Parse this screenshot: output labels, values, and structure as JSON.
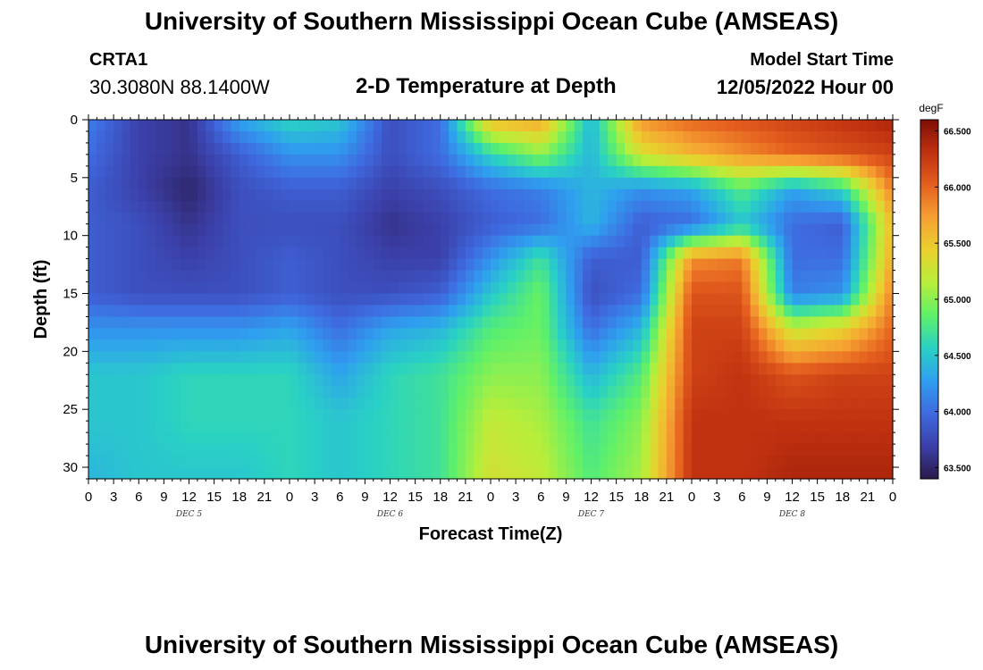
{
  "header": {
    "title": "University of Southern Mississippi Ocean Cube (AMSEAS)",
    "station_id": "CRTA1",
    "station_coords": "30.3080N  88.1400W",
    "subtitle": "2-D Temperature at Depth",
    "model_start_label": "Model Start Time",
    "model_start_value": "12/05/2022 Hour 00"
  },
  "footer": {
    "title": "University of Southern Mississippi Ocean Cube (AMSEAS)"
  },
  "colors": {
    "colormap": [
      "#2a1a4a",
      "#3b3fa8",
      "#3f6ae0",
      "#2f9fef",
      "#29d1c4",
      "#5ef06a",
      "#b8ee3a",
      "#e9d12e",
      "#f6a132",
      "#e5601f",
      "#c03110",
      "#7f0e06"
    ]
  },
  "chart_data": {
    "type": "heatmap",
    "title": "2-D Temperature at Depth",
    "xlabel": "Forecast Time(Z)",
    "ylabel": "Depth (ft)",
    "x_hours": [
      0,
      3,
      6,
      9,
      12,
      15,
      18,
      21,
      24,
      27,
      30,
      33,
      36,
      39,
      42,
      45,
      48,
      51,
      54,
      57,
      60,
      63,
      66,
      69,
      72,
      75,
      78,
      81,
      84,
      87,
      90,
      93,
      96
    ],
    "x_tick_labels": [
      "0",
      "3",
      "6",
      "9",
      "12",
      "15",
      "18",
      "21",
      "0",
      "3",
      "6",
      "9",
      "12",
      "15",
      "18",
      "21",
      "0",
      "3",
      "6",
      "9",
      "12",
      "15",
      "18",
      "21",
      "0",
      "3",
      "6",
      "9",
      "12",
      "15",
      "18",
      "21",
      "0"
    ],
    "day_labels": [
      {
        "label": "DEC 5",
        "hour": 12
      },
      {
        "label": "DEC 6",
        "hour": 36
      },
      {
        "label": "DEC 7",
        "hour": 60
      },
      {
        "label": "DEC 8",
        "hour": 84
      }
    ],
    "xlim": [
      0,
      96
    ],
    "y_ticks": [
      0,
      5,
      10,
      15,
      20,
      25,
      30
    ],
    "ylim": [
      0,
      31
    ],
    "colorbar": {
      "unit": "degF",
      "range": [
        63.4,
        66.6
      ],
      "ticks": [
        63.5,
        64.0,
        64.5,
        65.0,
        65.5,
        66.0,
        66.5
      ],
      "tick_labels": [
        "63.500",
        "64.000",
        "64.500",
        "65.000",
        "65.500",
        "66.000",
        "66.500"
      ]
    },
    "depth_levels": [
      0,
      3,
      6,
      9,
      12,
      15,
      18,
      22,
      26,
      31
    ],
    "temperature_hours": [
      0,
      6,
      12,
      18,
      24,
      30,
      36,
      42,
      48,
      54,
      60,
      66,
      72,
      78,
      84,
      90,
      96
    ],
    "temperature_degF": [
      [
        64.1,
        63.7,
        63.6,
        64.3,
        64.6,
        64.5,
        63.8,
        64.0,
        65.6,
        65.7,
        64.4,
        65.8,
        66.0,
        66.1,
        66.2,
        66.3,
        66.4
      ],
      [
        64.0,
        63.7,
        63.6,
        63.9,
        64.2,
        64.2,
        63.8,
        64.0,
        64.6,
        65.0,
        64.4,
        65.3,
        65.6,
        65.8,
        66.0,
        66.1,
        66.2
      ],
      [
        63.9,
        63.7,
        63.5,
        63.8,
        63.9,
        63.9,
        63.7,
        63.8,
        64.0,
        64.1,
        64.4,
        64.2,
        64.3,
        64.8,
        64.3,
        64.6,
        65.9
      ],
      [
        63.9,
        63.8,
        63.6,
        63.8,
        63.8,
        63.8,
        63.6,
        63.7,
        63.9,
        64.0,
        64.4,
        63.9,
        64.0,
        64.5,
        64.0,
        63.9,
        65.6
      ],
      [
        63.9,
        63.8,
        63.7,
        63.8,
        63.9,
        63.8,
        63.7,
        63.7,
        64.2,
        64.7,
        63.9,
        63.9,
        65.8,
        65.9,
        64.0,
        64.0,
        65.7
      ],
      [
        63.9,
        63.8,
        63.8,
        63.8,
        63.9,
        63.8,
        63.8,
        63.9,
        64.5,
        64.9,
        63.8,
        64.0,
        66.1,
        66.1,
        64.1,
        64.2,
        65.9
      ],
      [
        64.2,
        64.2,
        64.2,
        64.2,
        64.3,
        64.0,
        64.3,
        64.4,
        64.8,
        64.9,
        64.0,
        64.4,
        66.2,
        66.2,
        65.2,
        65.4,
        66.0
      ],
      [
        64.5,
        64.5,
        64.6,
        64.6,
        64.6,
        64.3,
        64.6,
        64.7,
        65.0,
        65.0,
        64.4,
        64.8,
        66.2,
        66.3,
        66.1,
        66.2,
        66.2
      ],
      [
        64.5,
        64.5,
        64.6,
        64.6,
        64.6,
        64.5,
        64.6,
        64.7,
        65.2,
        65.1,
        64.7,
        65.0,
        66.3,
        66.3,
        66.3,
        66.3,
        66.3
      ],
      [
        64.4,
        64.5,
        64.5,
        64.5,
        64.6,
        64.5,
        64.6,
        64.7,
        65.3,
        65.2,
        64.8,
        65.1,
        66.3,
        66.3,
        66.4,
        66.4,
        66.4
      ]
    ]
  }
}
